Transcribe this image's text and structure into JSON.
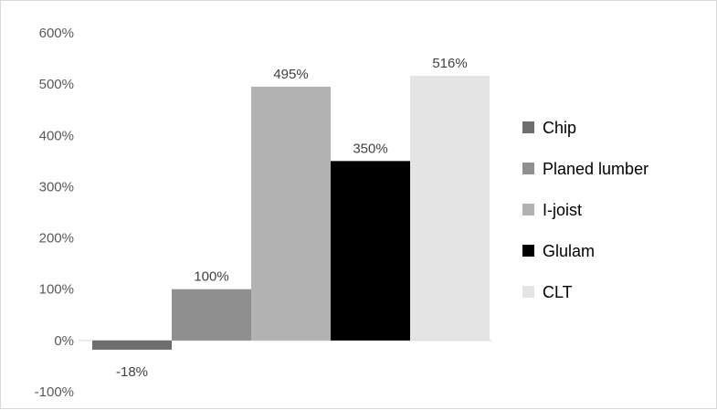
{
  "chart_data": {
    "type": "bar",
    "title": "",
    "xlabel": "",
    "ylabel": "",
    "ylim": [
      -100,
      600
    ],
    "ytick_step": 100,
    "ytick_suffix": "%",
    "grid": false,
    "legend_position": "right",
    "series": [
      {
        "name": "Chip",
        "value": -18,
        "label": "-18%",
        "color": "#6e6e6e"
      },
      {
        "name": "Planed lumber",
        "value": 100,
        "label": "100%",
        "color": "#8f8f8f"
      },
      {
        "name": "I-joist",
        "value": 495,
        "label": "495%",
        "color": "#b2b2b2"
      },
      {
        "name": "Glulam",
        "value": 350,
        "label": "350%",
        "color": "#000000"
      },
      {
        "name": "CLT",
        "value": 516,
        "label": "516%",
        "color": "#e4e4e4"
      }
    ]
  }
}
